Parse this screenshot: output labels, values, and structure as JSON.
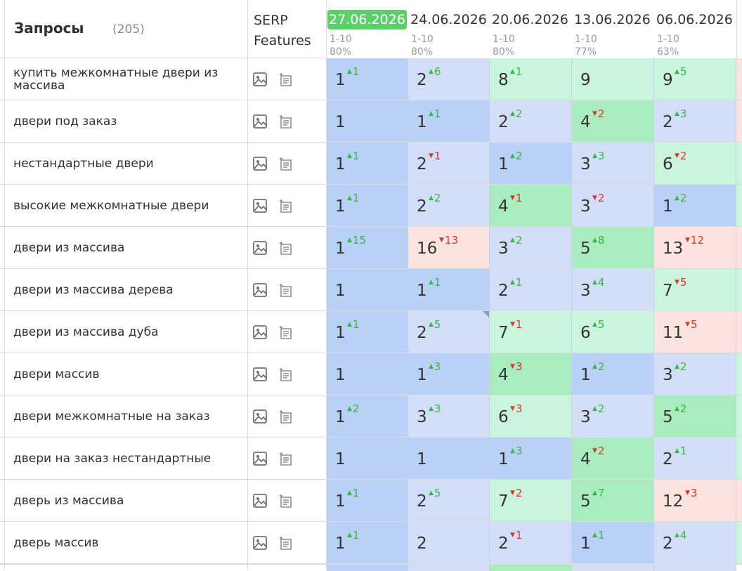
{
  "header": {
    "queries_title": "Запросы",
    "queries_count": "(205)",
    "serp_line1": "SERP",
    "serp_line2": "Features",
    "dates": [
      {
        "label": "27.06.2026",
        "range": "1-10",
        "pct": "80%",
        "active": true
      },
      {
        "label": "24.06.2026",
        "range": "1-10",
        "pct": "80%",
        "active": false
      },
      {
        "label": "20.06.2026",
        "range": "1-10",
        "pct": "80%",
        "active": false
      },
      {
        "label": "13.06.2026",
        "range": "1-10",
        "pct": "77%",
        "active": false
      },
      {
        "label": "06.06.2026",
        "range": "1-10",
        "pct": "63%",
        "active": false
      }
    ]
  },
  "icons": {
    "image": "image-icon",
    "snippet": "featured-snippet-icon"
  },
  "colors": {
    "dark_blue": "#b9d0f7",
    "light_blue": "#d2def8",
    "dark_green": "#a9ecbf",
    "light_green": "#c9f5dc",
    "pink": "#fbe3e0",
    "up": "#3bb54a",
    "down": "#d33a2c",
    "active_date": "#5ccf6a"
  },
  "rows": [
    {
      "keyword": "купить межкомнатные двери из массива",
      "cells": [
        {
          "v": "1",
          "d": "1",
          "dir": "up",
          "c": "dark_blue"
        },
        {
          "v": "2",
          "d": "6",
          "dir": "up",
          "c": "light_blue"
        },
        {
          "v": "8",
          "d": "1",
          "dir": "up",
          "c": "light_green"
        },
        {
          "v": "9",
          "d": "",
          "dir": "",
          "c": "light_green"
        },
        {
          "v": "9",
          "d": "5",
          "dir": "up",
          "c": "light_green"
        }
      ]
    },
    {
      "keyword": "двери под заказ",
      "cells": [
        {
          "v": "1",
          "d": "",
          "dir": "",
          "c": "dark_blue"
        },
        {
          "v": "1",
          "d": "1",
          "dir": "up",
          "c": "dark_blue"
        },
        {
          "v": "2",
          "d": "2",
          "dir": "up",
          "c": "light_blue"
        },
        {
          "v": "4",
          "d": "2",
          "dir": "down",
          "c": "dark_green"
        },
        {
          "v": "2",
          "d": "3",
          "dir": "up",
          "c": "light_blue"
        }
      ]
    },
    {
      "keyword": "нестандартные двери",
      "cells": [
        {
          "v": "1",
          "d": "1",
          "dir": "up",
          "c": "dark_blue"
        },
        {
          "v": "2",
          "d": "1",
          "dir": "down",
          "c": "light_blue"
        },
        {
          "v": "1",
          "d": "2",
          "dir": "up",
          "c": "dark_blue"
        },
        {
          "v": "3",
          "d": "3",
          "dir": "up",
          "c": "light_blue"
        },
        {
          "v": "6",
          "d": "2",
          "dir": "down",
          "c": "light_green"
        }
      ]
    },
    {
      "keyword": "высокие межкомнатные двери",
      "cells": [
        {
          "v": "1",
          "d": "1",
          "dir": "up",
          "c": "dark_blue"
        },
        {
          "v": "2",
          "d": "2",
          "dir": "up",
          "c": "light_blue"
        },
        {
          "v": "4",
          "d": "1",
          "dir": "down",
          "c": "dark_green"
        },
        {
          "v": "3",
          "d": "2",
          "dir": "down",
          "c": "light_blue"
        },
        {
          "v": "1",
          "d": "2",
          "dir": "up",
          "c": "dark_blue"
        }
      ]
    },
    {
      "keyword": "двери из массива",
      "cells": [
        {
          "v": "1",
          "d": "15",
          "dir": "up",
          "c": "dark_blue"
        },
        {
          "v": "16",
          "d": "13",
          "dir": "down",
          "c": "pink"
        },
        {
          "v": "3",
          "d": "2",
          "dir": "up",
          "c": "light_blue"
        },
        {
          "v": "5",
          "d": "8",
          "dir": "up",
          "c": "dark_green"
        },
        {
          "v": "13",
          "d": "12",
          "dir": "down",
          "c": "pink"
        }
      ]
    },
    {
      "keyword": "двери из массива дерева",
      "cells": [
        {
          "v": "1",
          "d": "",
          "dir": "",
          "c": "dark_blue"
        },
        {
          "v": "1",
          "d": "1",
          "dir": "up",
          "c": "dark_blue"
        },
        {
          "v": "2",
          "d": "1",
          "dir": "up",
          "c": "light_blue"
        },
        {
          "v": "3",
          "d": "4",
          "dir": "up",
          "c": "light_blue"
        },
        {
          "v": "7",
          "d": "5",
          "dir": "down",
          "c": "light_green"
        }
      ]
    },
    {
      "keyword": "двери из массива дуба",
      "cells": [
        {
          "v": "1",
          "d": "1",
          "dir": "up",
          "c": "dark_blue"
        },
        {
          "v": "2",
          "d": "5",
          "dir": "up",
          "c": "light_blue",
          "note": true
        },
        {
          "v": "7",
          "d": "1",
          "dir": "down",
          "c": "light_green"
        },
        {
          "v": "6",
          "d": "5",
          "dir": "up",
          "c": "light_green"
        },
        {
          "v": "11",
          "d": "5",
          "dir": "down",
          "c": "pink"
        }
      ]
    },
    {
      "keyword": "двери массив",
      "cells": [
        {
          "v": "1",
          "d": "",
          "dir": "",
          "c": "dark_blue"
        },
        {
          "v": "1",
          "d": "3",
          "dir": "up",
          "c": "dark_blue"
        },
        {
          "v": "4",
          "d": "3",
          "dir": "down",
          "c": "dark_green"
        },
        {
          "v": "1",
          "d": "2",
          "dir": "up",
          "c": "dark_blue"
        },
        {
          "v": "3",
          "d": "2",
          "dir": "up",
          "c": "light_blue"
        }
      ]
    },
    {
      "keyword": "двери межкомнатные на заказ",
      "cells": [
        {
          "v": "1",
          "d": "2",
          "dir": "up",
          "c": "dark_blue"
        },
        {
          "v": "3",
          "d": "3",
          "dir": "up",
          "c": "light_blue"
        },
        {
          "v": "6",
          "d": "3",
          "dir": "down",
          "c": "light_green"
        },
        {
          "v": "3",
          "d": "2",
          "dir": "up",
          "c": "light_blue"
        },
        {
          "v": "5",
          "d": "2",
          "dir": "up",
          "c": "dark_green"
        }
      ]
    },
    {
      "keyword": "двери на заказ нестандартные",
      "cells": [
        {
          "v": "1",
          "d": "",
          "dir": "",
          "c": "dark_blue"
        },
        {
          "v": "1",
          "d": "",
          "dir": "",
          "c": "dark_blue"
        },
        {
          "v": "1",
          "d": "3",
          "dir": "up",
          "c": "dark_blue"
        },
        {
          "v": "4",
          "d": "2",
          "dir": "down",
          "c": "dark_green"
        },
        {
          "v": "2",
          "d": "1",
          "dir": "up",
          "c": "light_blue"
        }
      ]
    },
    {
      "keyword": "дверь из массива",
      "cells": [
        {
          "v": "1",
          "d": "1",
          "dir": "up",
          "c": "dark_blue"
        },
        {
          "v": "2",
          "d": "5",
          "dir": "up",
          "c": "light_blue"
        },
        {
          "v": "7",
          "d": "2",
          "dir": "down",
          "c": "light_green"
        },
        {
          "v": "5",
          "d": "7",
          "dir": "up",
          "c": "dark_green"
        },
        {
          "v": "12",
          "d": "3",
          "dir": "down",
          "c": "pink"
        }
      ]
    },
    {
      "keyword": "дверь массив",
      "cells": [
        {
          "v": "1",
          "d": "1",
          "dir": "up",
          "c": "dark_blue"
        },
        {
          "v": "2",
          "d": "",
          "dir": "",
          "c": "light_blue"
        },
        {
          "v": "2",
          "d": "1",
          "dir": "down",
          "c": "light_blue"
        },
        {
          "v": "1",
          "d": "1",
          "dir": "up",
          "c": "dark_blue"
        },
        {
          "v": "2",
          "d": "4",
          "dir": "up",
          "c": "light_blue"
        }
      ]
    }
  ],
  "partial_row_colors": [
    "dark_blue",
    "light_blue",
    "dark_green",
    "light_blue",
    "light_blue"
  ],
  "partial_col_colors": [
    "pink",
    "pink",
    "light_green",
    "light_green",
    "pink",
    "light_green",
    "pink",
    "light_green",
    "light_green",
    "light_green",
    "pink",
    "light_green"
  ]
}
